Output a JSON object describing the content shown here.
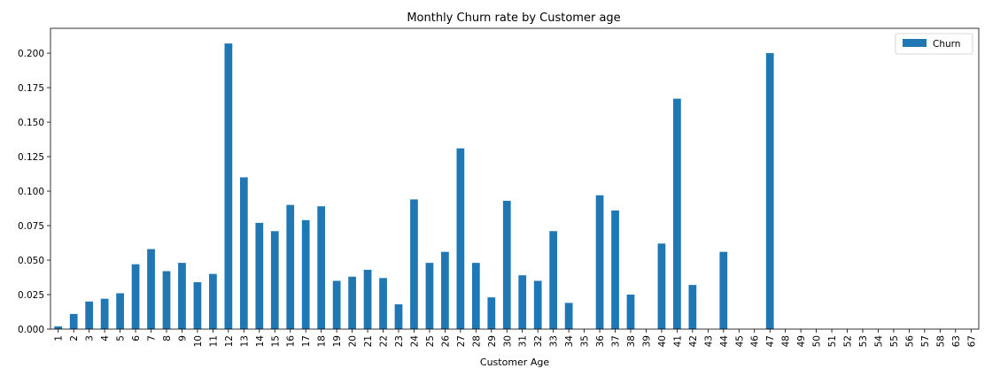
{
  "chart_data": {
    "type": "bar",
    "title": "Monthly Churn rate by Customer age",
    "xlabel": "Customer Age",
    "ylabel": "",
    "ylim": [
      0,
      0.218
    ],
    "yticks": [
      "0.000",
      "0.025",
      "0.050",
      "0.075",
      "0.100",
      "0.125",
      "0.150",
      "0.175",
      "0.200"
    ],
    "ytick_values": [
      0,
      0.025,
      0.05,
      0.075,
      0.1,
      0.125,
      0.15,
      0.175,
      0.2
    ],
    "categories": [
      "1",
      "2",
      "3",
      "4",
      "5",
      "6",
      "7",
      "8",
      "9",
      "10",
      "11",
      "12",
      "13",
      "14",
      "15",
      "16",
      "17",
      "18",
      "19",
      "20",
      "21",
      "22",
      "23",
      "24",
      "25",
      "26",
      "27",
      "28",
      "29",
      "30",
      "31",
      "32",
      "33",
      "34",
      "35",
      "36",
      "37",
      "38",
      "39",
      "40",
      "41",
      "42",
      "43",
      "44",
      "45",
      "46",
      "47",
      "48",
      "49",
      "50",
      "51",
      "52",
      "53",
      "54",
      "55",
      "56",
      "57",
      "58",
      "63",
      "67"
    ],
    "series": [
      {
        "name": "Churn",
        "color": "#1f77b4",
        "values": [
          0.002,
          0.011,
          0.02,
          0.022,
          0.026,
          0.047,
          0.058,
          0.042,
          0.048,
          0.034,
          0.04,
          0.207,
          0.11,
          0.077,
          0.071,
          0.09,
          0.079,
          0.089,
          0.035,
          0.038,
          0.043,
          0.037,
          0.018,
          0.094,
          0.048,
          0.056,
          0.131,
          0.048,
          0.023,
          0.093,
          0.039,
          0.035,
          0.071,
          0.019,
          0.0,
          0.097,
          0.086,
          0.025,
          0.0,
          0.062,
          0.167,
          0.032,
          0.0,
          0.056,
          0.0,
          0.0,
          0.2,
          0.0,
          0.0,
          0.0,
          0.0,
          0.0,
          0.0,
          0.0,
          0.0,
          0.0,
          0.0,
          0.0,
          0.0,
          0.0
        ]
      }
    ],
    "legend": {
      "position": "top-right",
      "labels": [
        "Churn"
      ]
    },
    "grid": false
  }
}
